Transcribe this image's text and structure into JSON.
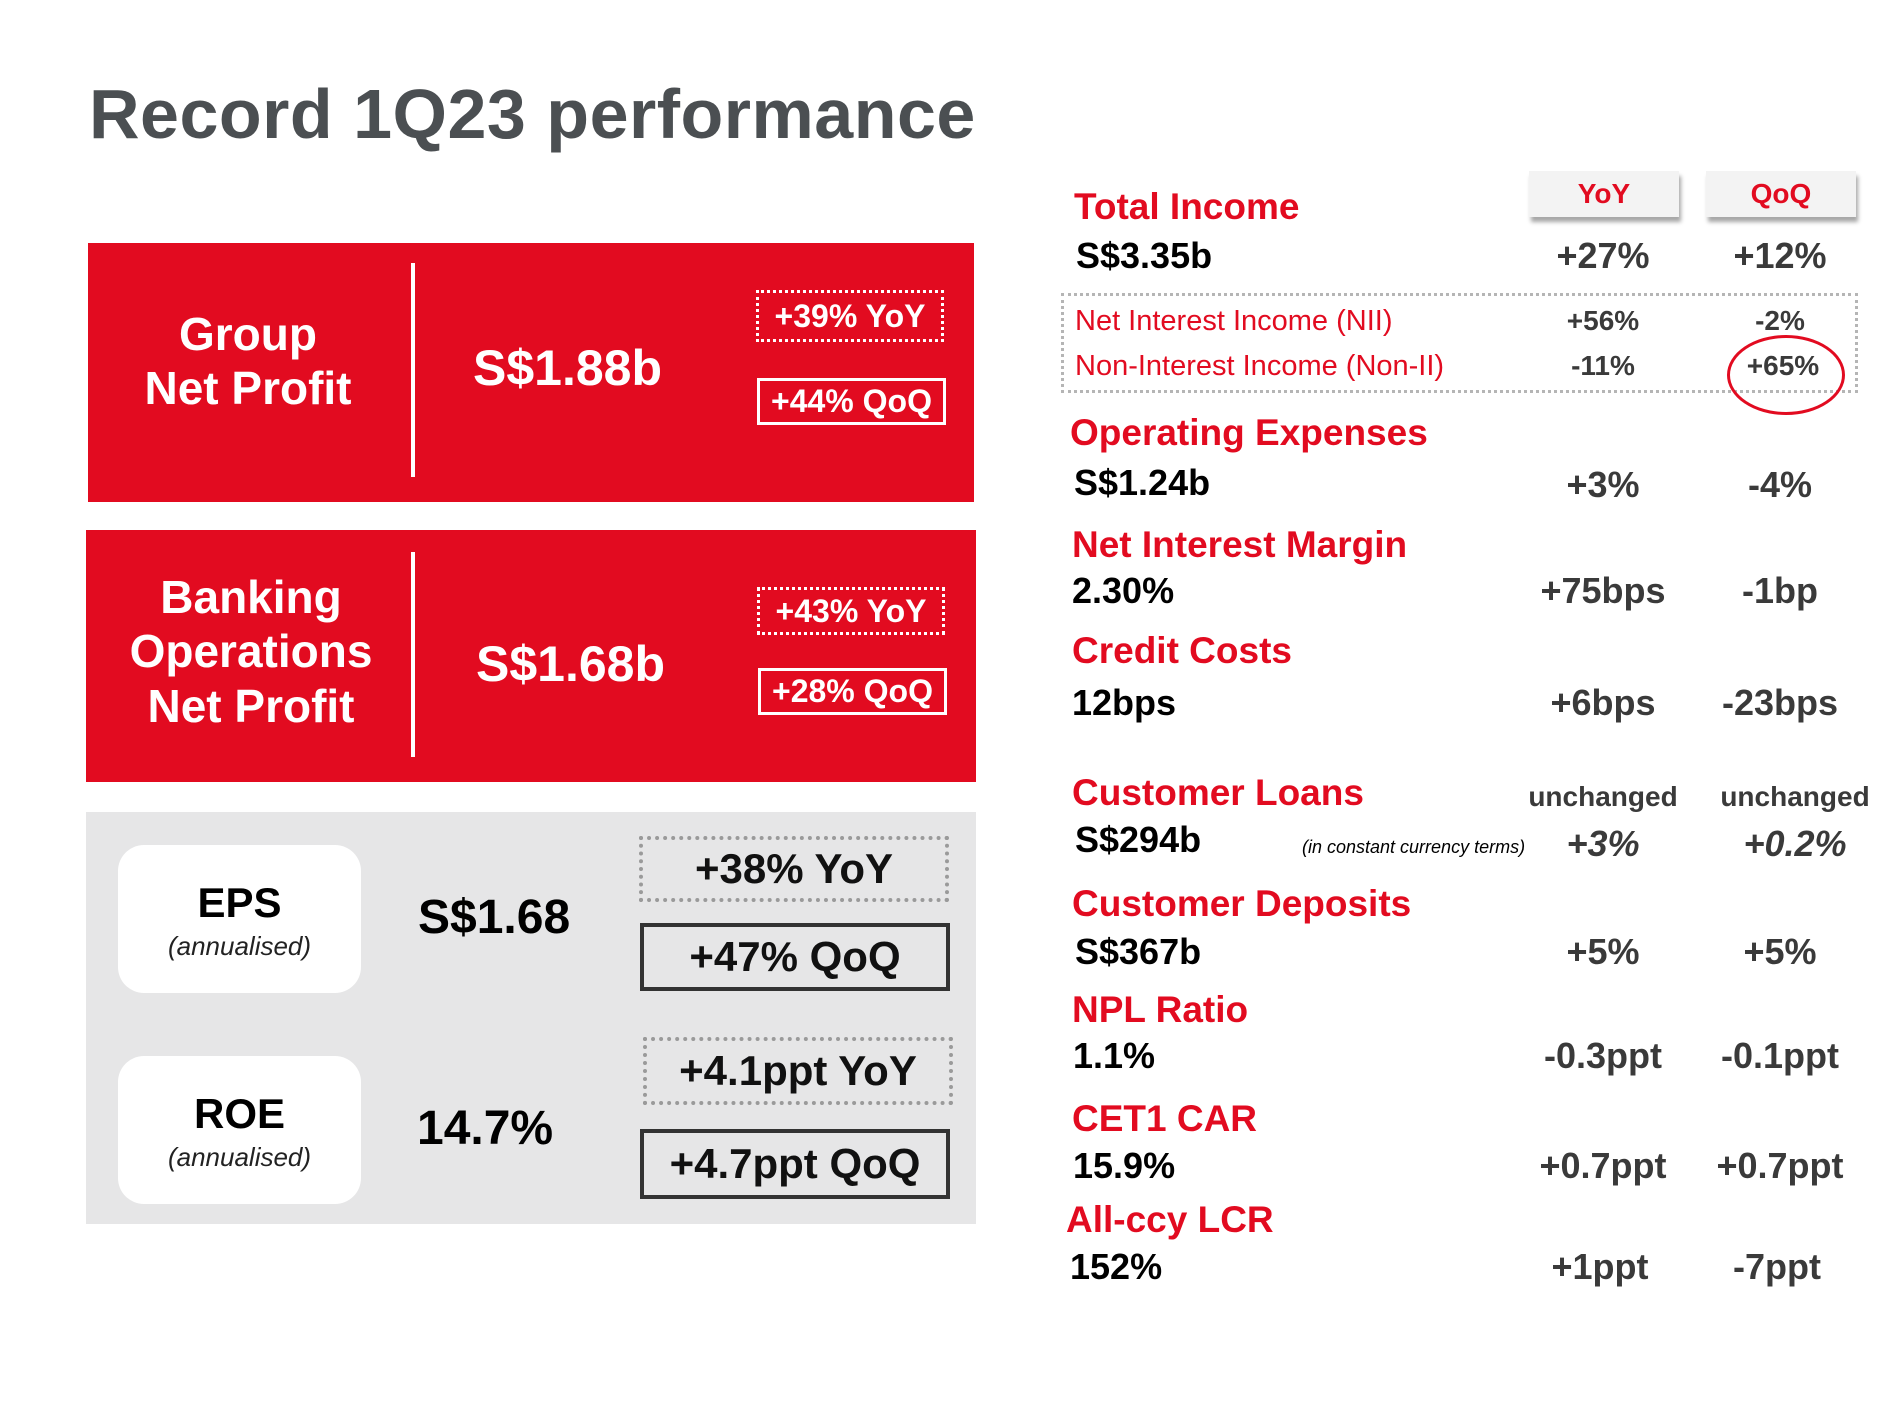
{
  "title": "Record 1Q23 performance",
  "group_net_profit": {
    "label_line1": "Group",
    "label_line2": "Net Profit",
    "value": "S$1.88b",
    "yoy": "+39% YoY",
    "qoq": "+44% QoQ"
  },
  "banking_ops": {
    "label_line1": "Banking",
    "label_line2": "Operations",
    "label_line3": "Net Profit",
    "value": "S$1.68b",
    "yoy": "+43% YoY",
    "qoq": "+28% QoQ"
  },
  "eps": {
    "label": "EPS",
    "sub": "(annualised)",
    "value": "S$1.68",
    "yoy": "+38% YoY",
    "qoq": "+47% QoQ"
  },
  "roe": {
    "label": "ROE",
    "sub": "(annualised)",
    "value": "14.7%",
    "yoy": "+4.1ppt YoY",
    "qoq": "+4.7ppt QoQ"
  },
  "headers": {
    "yoy": "YoY",
    "qoq": "QoQ"
  },
  "metrics": {
    "total_income": {
      "label": "Total Income",
      "value": "S$3.35b",
      "yoy": "+27%",
      "qoq": "+12%"
    },
    "nii": {
      "label": "Net Interest Income (NII)",
      "yoy": "+56%",
      "qoq": "-2%"
    },
    "non_ii": {
      "label": "Non-Interest Income (Non-II)",
      "yoy": "-11%",
      "qoq": "+65%"
    },
    "opex": {
      "label": "Operating Expenses",
      "value": "S$1.24b",
      "yoy": "+3%",
      "qoq": "-4%"
    },
    "nim": {
      "label": "Net Interest Margin",
      "value": "2.30%",
      "yoy": "+75bps",
      "qoq": "-1bp"
    },
    "credit_costs": {
      "label": "Credit Costs",
      "value": "12bps",
      "yoy": "+6bps",
      "qoq": "-23bps"
    },
    "customer_loans": {
      "label": "Customer Loans",
      "value": "S$294b",
      "yoy_top": "unchanged",
      "qoq_top": "unchanged",
      "note": "(in constant currency terms)",
      "yoy": "+3%",
      "qoq": "+0.2%"
    },
    "customer_deposits": {
      "label": "Customer Deposits",
      "value": "S$367b",
      "yoy": "+5%",
      "qoq": "+5%"
    },
    "npl_ratio": {
      "label": "NPL Ratio",
      "value": "1.1%",
      "yoy": "-0.3ppt",
      "qoq": "-0.1ppt"
    },
    "cet1_car": {
      "label": "CET1 CAR",
      "value": "15.9%",
      "yoy": "+0.7ppt",
      "qoq": "+0.7ppt"
    },
    "lcr": {
      "label": "All-ccy LCR",
      "value": "152%",
      "yoy": "+1ppt",
      "qoq": "-7ppt"
    }
  },
  "colors": {
    "brand_red": "#e20b20",
    "title_grey": "#4b4f52",
    "panel_grey": "#e6e6e7"
  }
}
